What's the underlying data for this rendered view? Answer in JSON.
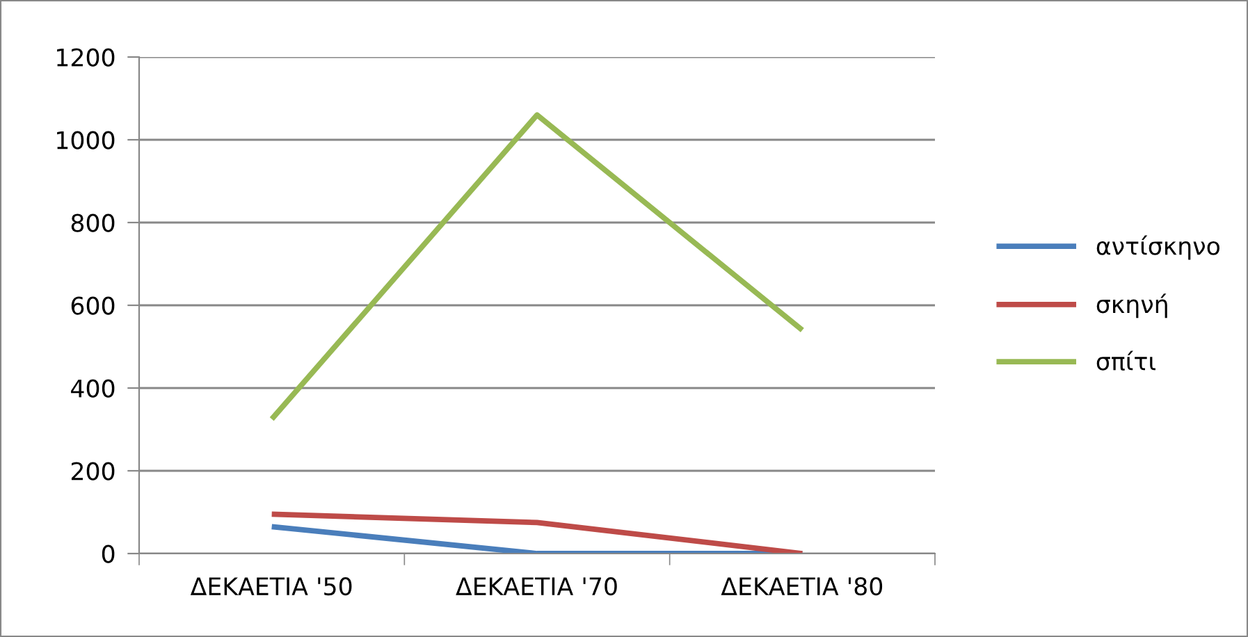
{
  "chart_data": {
    "type": "line",
    "categories": [
      "ΔΕΚΑΕΤΙΑ '50",
      "ΔΕΚΑΕΤΙΑ '70",
      "ΔΕΚΑΕΤΙΑ '80"
    ],
    "series": [
      {
        "name": "αντίσκηνο",
        "color": "#4a7ebb",
        "values": [
          65,
          0,
          0
        ]
      },
      {
        "name": "σκηνή",
        "color": "#be4b48",
        "values": [
          95,
          75,
          0
        ]
      },
      {
        "name": "σπίτι",
        "color": "#98b954",
        "values": [
          325,
          1060,
          540
        ]
      }
    ],
    "ylim": [
      0,
      1200
    ],
    "yticks": [
      0,
      200,
      400,
      600,
      800,
      1000,
      1200
    ],
    "grid": "y",
    "legend": "right",
    "marker": "none",
    "line_style": "solid"
  }
}
